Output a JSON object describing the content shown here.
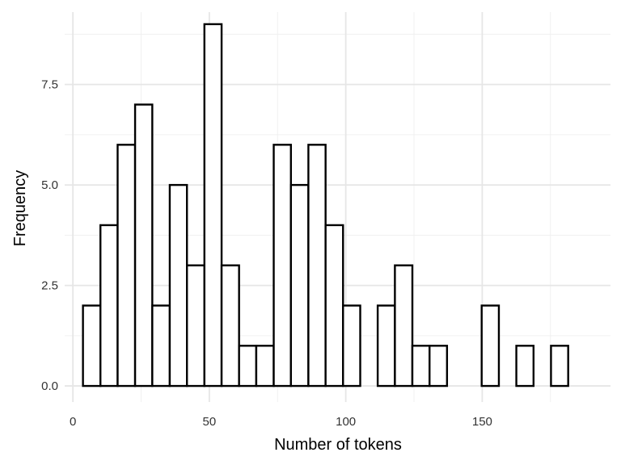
{
  "chart_data": {
    "type": "bar",
    "title": "",
    "xlabel": "Number of tokens",
    "ylabel": "Frequency",
    "xlim": [
      -3,
      197
    ],
    "ylim": [
      -0.4,
      9.3
    ],
    "x_ticks": [
      0,
      50,
      100,
      150
    ],
    "x_tick_labels": [
      "0",
      "50",
      "100",
      "150"
    ],
    "x_minor_ticks": [
      25,
      75,
      125,
      175
    ],
    "y_ticks": [
      0,
      2.5,
      5,
      7.5
    ],
    "y_tick_labels": [
      "0.0",
      "2.5",
      "5.0",
      "7.5"
    ],
    "y_minor_ticks": [
      1.25,
      3.75,
      6.25,
      8.75
    ],
    "grid": true,
    "bin_edges": [
      3.7,
      10.1,
      16.4,
      22.8,
      29.1,
      35.5,
      41.8,
      48.2,
      54.5,
      60.9,
      67.2,
      73.6,
      79.9,
      86.3,
      92.6,
      99.0,
      105.3,
      111.7,
      118.0,
      124.4,
      130.7,
      137.1,
      143.4,
      149.8,
      156.1,
      162.5,
      168.8,
      175.2,
      181.5
    ],
    "values": [
      2,
      4,
      6,
      7,
      2,
      5,
      3,
      9,
      3,
      1,
      1,
      6,
      5,
      6,
      4,
      2,
      0,
      2,
      3,
      1,
      1,
      0,
      0,
      2,
      0,
      1,
      0,
      1
    ]
  }
}
